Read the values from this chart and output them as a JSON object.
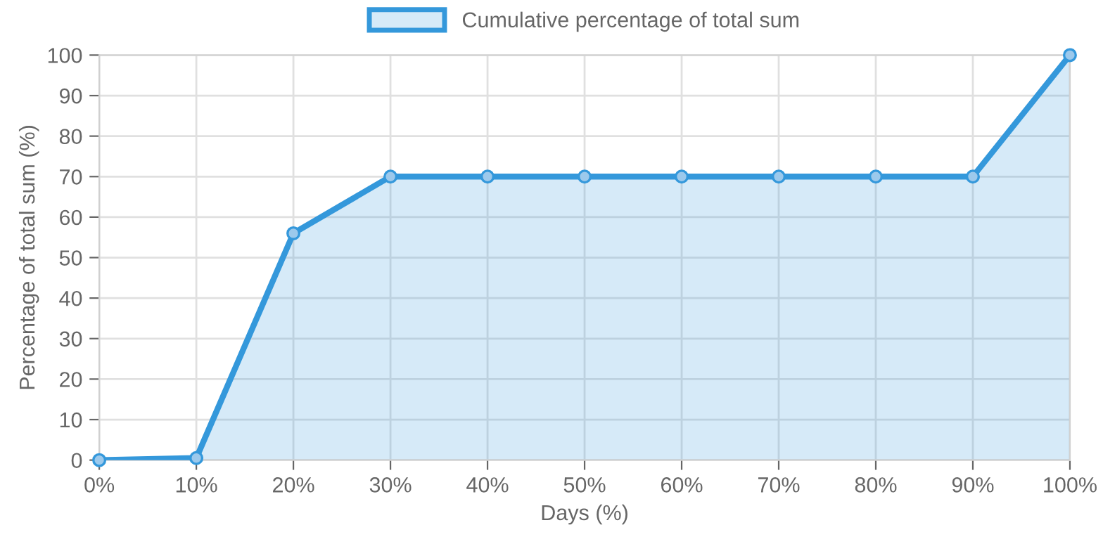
{
  "chart_data": {
    "type": "area",
    "xlabel": "Days (%)",
    "ylabel": "Percentage of total sum (%)",
    "categories": [
      "0%",
      "10%",
      "20%",
      "30%",
      "40%",
      "50%",
      "60%",
      "70%",
      "80%",
      "90%",
      "100%"
    ],
    "series": [
      {
        "name": "Cumulative percentage of total sum",
        "color": "#3498db",
        "values": [
          0,
          0.5,
          56,
          70,
          70,
          70,
          70,
          70,
          70,
          70,
          100
        ]
      }
    ],
    "ylim": [
      0,
      100
    ],
    "yticks": [
      0,
      10,
      20,
      30,
      40,
      50,
      60,
      70,
      80,
      90,
      100
    ],
    "grid": true,
    "legend": "top",
    "marker": "circle",
    "line_style": "solid"
  }
}
